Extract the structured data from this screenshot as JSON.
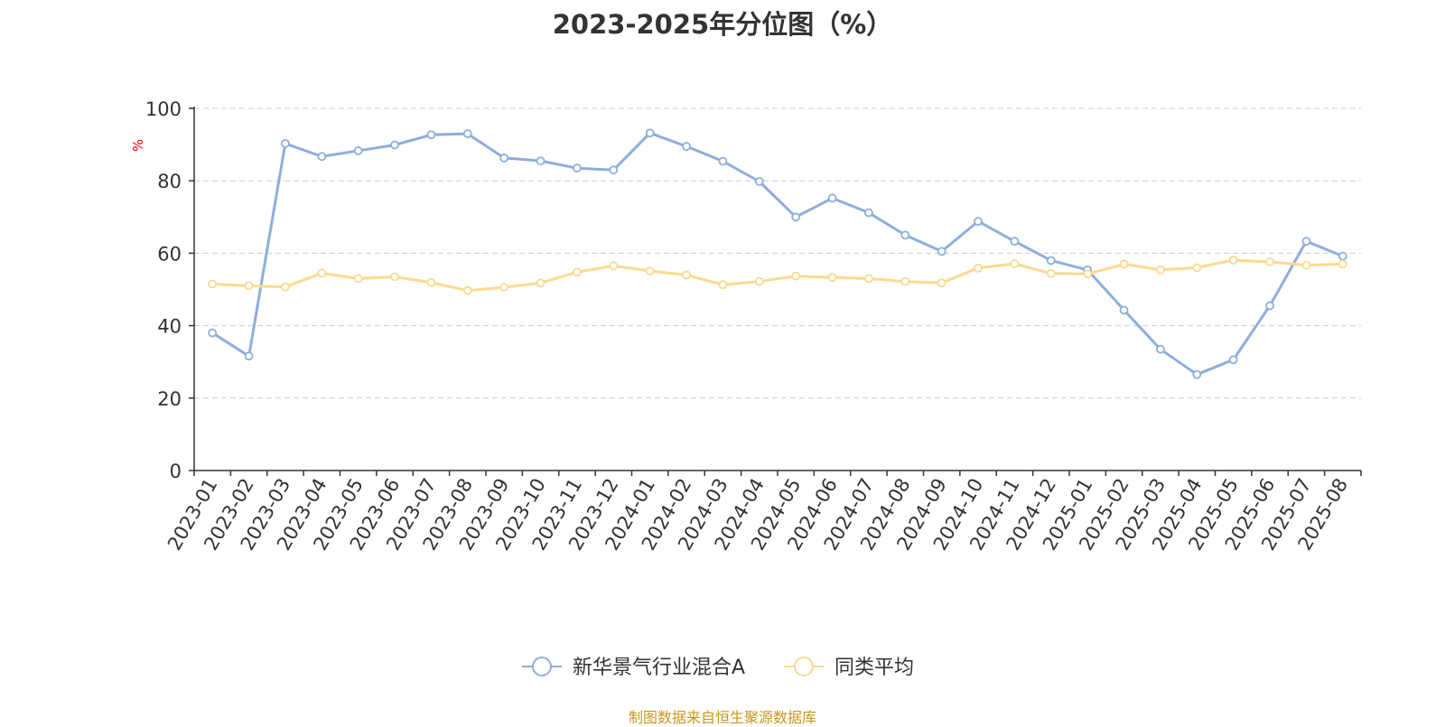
{
  "chart_data": {
    "type": "line",
    "title": "2023-2025年分位图（%）",
    "ylabel": "%",
    "ylim": [
      0,
      100
    ],
    "yticks": [
      0,
      20,
      40,
      60,
      80,
      100
    ],
    "grid": true,
    "legend_position": "bottom",
    "categories": [
      "2023-01",
      "2023-02",
      "2023-03",
      "2023-04",
      "2023-05",
      "2023-06",
      "2023-07",
      "2023-08",
      "2023-09",
      "2023-10",
      "2023-11",
      "2023-12",
      "2024-01",
      "2024-02",
      "2024-03",
      "2024-04",
      "2024-05",
      "2024-06",
      "2024-07",
      "2024-08",
      "2024-09",
      "2024-10",
      "2024-11",
      "2024-12",
      "2025-01",
      "2025-02",
      "2025-03",
      "2025-04",
      "2025-05",
      "2025-06",
      "2025-07",
      "2025-08"
    ],
    "series": [
      {
        "name": "新华景气行业混合A",
        "color": "#8eaedb",
        "values": [
          38.0,
          31.6,
          90.3,
          86.7,
          88.3,
          89.9,
          92.7,
          93.0,
          86.3,
          85.5,
          83.5,
          83.0,
          93.2,
          89.5,
          85.4,
          79.8,
          70.0,
          75.2,
          71.2,
          65.0,
          60.5,
          68.8,
          63.3,
          58.0,
          55.4,
          44.3,
          33.5,
          26.5,
          30.6,
          45.5,
          63.3,
          59.2
        ]
      },
      {
        "name": "同类平均",
        "color": "#fbd98f",
        "values": [
          51.5,
          51.0,
          50.7,
          54.5,
          53.0,
          53.5,
          51.9,
          49.7,
          50.6,
          51.8,
          54.8,
          56.5,
          55.1,
          54.0,
          51.3,
          52.2,
          53.7,
          53.3,
          53.0,
          52.2,
          51.8,
          55.9,
          57.1,
          54.4,
          54.3,
          57.0,
          55.4,
          56.0,
          58.1,
          57.6,
          56.7,
          57.0
        ]
      }
    ]
  },
  "footer": {
    "source": "制图数据来自恒生聚源数据库"
  }
}
